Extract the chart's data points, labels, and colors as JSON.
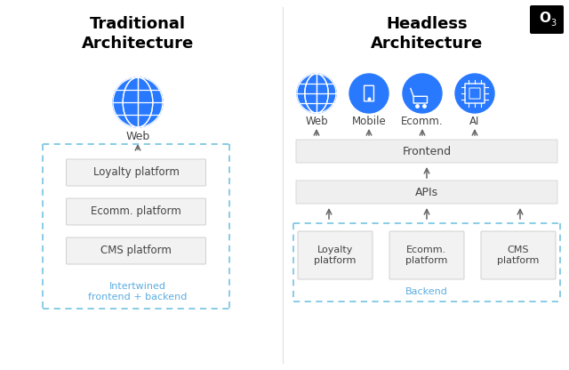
{
  "bg_color": "#ffffff",
  "title_left": "Traditional\nArchitecture",
  "title_right": "Headless\nArchitecture",
  "title_fontsize": 13,
  "title_fontweight": "bold",
  "blue_color": "#2979FF",
  "light_gray": "#f0f0f0",
  "dashed_color": "#7EC8E3",
  "platform_text_color": "#444444",
  "intertwined_color": "#5DADE2",
  "backend_color": "#5DADE2",
  "arrow_color": "#666666",
  "left_platforms": [
    "Loyalty platform",
    "Ecomm. platform",
    "CMS platform"
  ],
  "right_platforms": [
    "Loyalty\nplatform",
    "Ecomm.\nplatform",
    "CMS\nplatform"
  ],
  "right_labels_top": [
    "Web",
    "Mobile",
    "Ecomm.",
    "AI"
  ],
  "divider_color": "#e0e0e0",
  "logo_bg": "#000000"
}
